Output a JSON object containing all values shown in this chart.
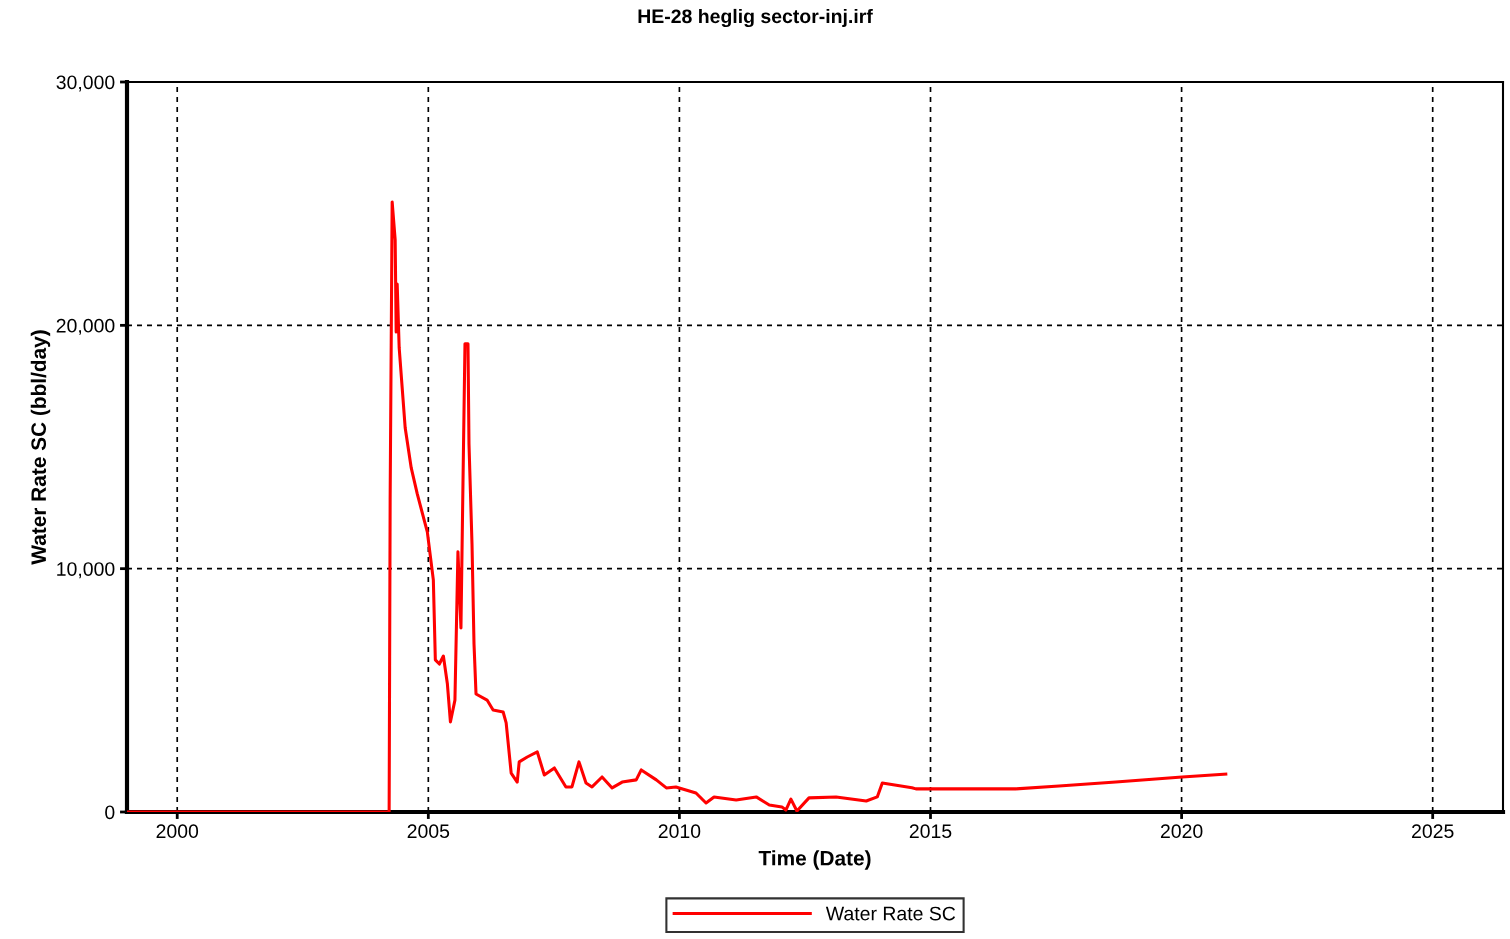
{
  "chart_data": {
    "type": "line",
    "title": "HE-28 heglig sector-inj.irf",
    "xlabel": "Time (Date)",
    "ylabel": "Water Rate SC (bbl/day)",
    "xlim": [
      1999.0,
      2026.4
    ],
    "xticks": [
      2000,
      2005,
      2010,
      2015,
      2020,
      2025
    ],
    "ylim": [
      0,
      30000
    ],
    "yticks": [
      0,
      {
        "value": 10000,
        "label": "10,000"
      },
      {
        "value": 20000,
        "label": "20,000"
      },
      {
        "value": 30000,
        "label": "30,000"
      }
    ],
    "grid": true,
    "legend": "bottom",
    "line_style": "solid",
    "series": [
      {
        "name": "Water Rate SC",
        "color": "#ff0000",
        "x": [
          1999.0,
          2004.22,
          2004.24,
          2004.28,
          2004.34,
          2004.36,
          2004.38,
          2004.42,
          2004.54,
          2004.66,
          2004.78,
          2004.98,
          2005.1,
          2005.14,
          2005.22,
          2005.3,
          2005.38,
          2005.44,
          2005.53,
          2005.59,
          2005.65,
          2005.69,
          2005.73,
          2005.79,
          2005.81,
          2005.87,
          2005.91,
          2005.95,
          2006.17,
          2006.29,
          2006.49,
          2006.55,
          2006.65,
          2006.77,
          2006.81,
          2006.97,
          2007.17,
          2007.31,
          2007.51,
          2007.74,
          2007.86,
          2008.0,
          2008.14,
          2008.26,
          2008.46,
          2008.66,
          2008.86,
          2009.14,
          2009.24,
          2009.54,
          2009.74,
          2009.93,
          2010.33,
          2010.53,
          2010.69,
          2011.13,
          2011.53,
          2011.79,
          2012.04,
          2012.12,
          2012.22,
          2012.34,
          2012.58,
          2013.12,
          2013.72,
          2013.94,
          2014.04,
          2014.63,
          2014.71,
          2016.7,
          2017.56,
          2018.69,
          2020.01,
          2020.88
        ],
        "values": [
          0,
          0,
          12820,
          25070,
          23510,
          19730,
          21700,
          19070,
          15780,
          14140,
          13070,
          11510,
          9540,
          6250,
          6080,
          6410,
          5260,
          3700,
          4600,
          10690,
          7560,
          13480,
          19240,
          19240,
          15120,
          11010,
          6900,
          4850,
          4600,
          4190,
          4110,
          3660,
          1600,
          1230,
          2060,
          2260,
          2470,
          1520,
          1810,
          1030,
          1030,
          2060,
          1190,
          1030,
          1440,
          990,
          1230,
          1320,
          1730,
          1320,
          990,
          1030,
          780,
          370,
          620,
          490,
          620,
          290,
          210,
          80,
          530,
          40,
          580,
          620,
          450,
          620,
          1190,
          1000,
          950,
          950,
          1070,
          1230,
          1440,
          1560
        ]
      }
    ]
  }
}
